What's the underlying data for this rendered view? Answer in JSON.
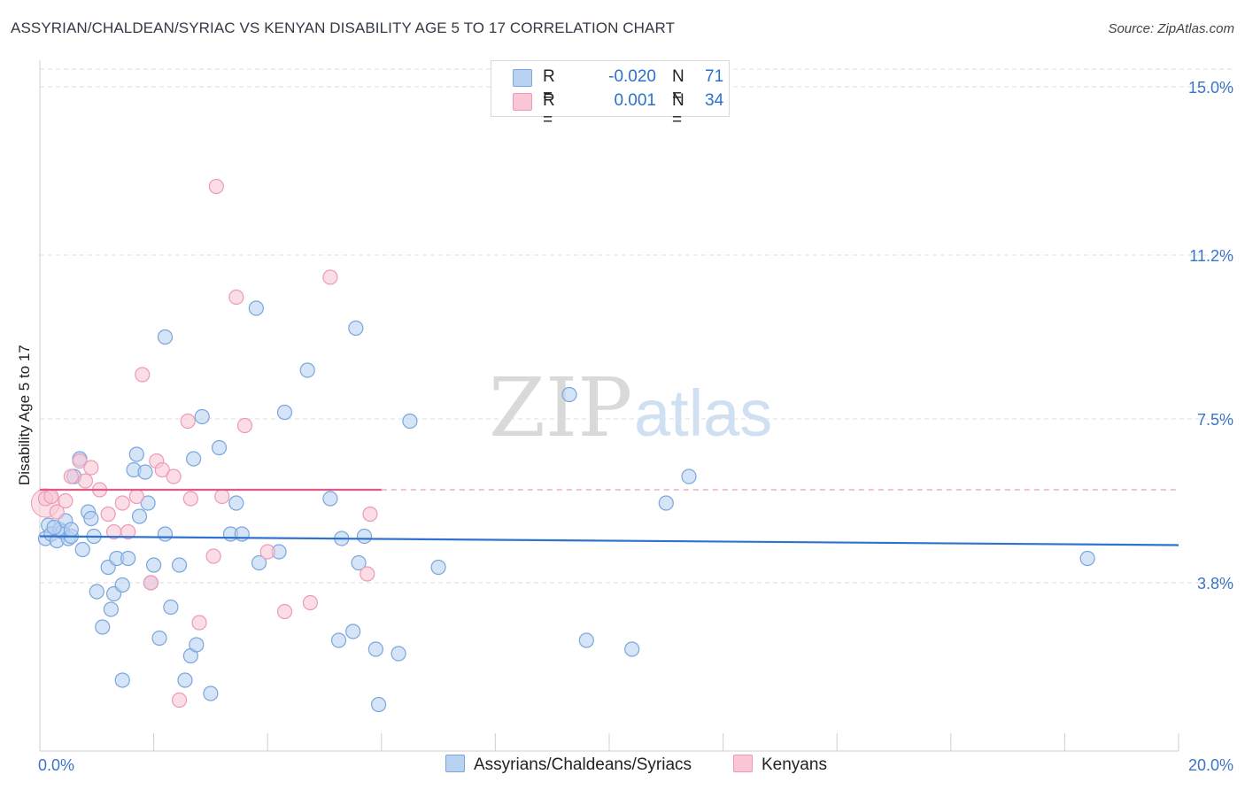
{
  "chart_data": {
    "type": "scatter",
    "title": "ASSYRIAN/CHALDEAN/SYRIAC VS KENYAN DISABILITY AGE 5 TO 17 CORRELATION CHART",
    "source": "Source: ZipAtlas.com",
    "xlabel": "",
    "ylabel": "Disability Age 5 to 17",
    "xlim": [
      0,
      20
    ],
    "ylim": [
      0,
      15.5
    ],
    "x_tick_labels": [
      "0.0%",
      "20.0%"
    ],
    "y_ticks": [
      3.8,
      7.5,
      11.2,
      15.0
    ],
    "y_tick_labels": [
      "3.8%",
      "7.5%",
      "11.2%",
      "15.0%"
    ],
    "grid": true,
    "watermark": "ZIPatlas",
    "colors": {
      "blue_fill": "#b9d2f2",
      "blue_stroke": "#7aa6dc",
      "blue_line": "#2f72d0",
      "pink_fill": "#f8c6d5",
      "pink_stroke": "#ee9ab5",
      "pink_line": "#e05a86",
      "axis_text": "#3a74c9",
      "grid": "#dddddd"
    },
    "legend": {
      "rows": [
        {
          "r_label": "R =",
          "r_value": "-0.020",
          "n_label": "N =",
          "n_value": "71"
        },
        {
          "r_label": "R =",
          "r_value": "0.001",
          "n_label": "N =",
          "n_value": "34"
        }
      ]
    },
    "series": [
      {
        "name": "Assyrians/Chaldeans/Syriacs",
        "color": "blue",
        "trend": {
          "x": [
            0,
            20
          ],
          "y": [
            4.85,
            4.65
          ]
        },
        "points": [
          [
            0.1,
            4.8
          ],
          [
            0.15,
            5.1
          ],
          [
            0.2,
            4.9
          ],
          [
            0.3,
            4.75
          ],
          [
            0.35,
            5.0
          ],
          [
            0.4,
            4.95
          ],
          [
            0.45,
            5.2
          ],
          [
            0.5,
            4.8
          ],
          [
            0.55,
            4.85
          ],
          [
            0.6,
            6.2
          ],
          [
            0.7,
            6.6
          ],
          [
            0.75,
            4.55
          ],
          [
            0.85,
            5.4
          ],
          [
            0.9,
            5.25
          ],
          [
            0.95,
            4.85
          ],
          [
            1.0,
            3.6
          ],
          [
            1.1,
            2.8
          ],
          [
            1.2,
            4.15
          ],
          [
            1.25,
            3.2
          ],
          [
            1.3,
            3.55
          ],
          [
            1.35,
            4.35
          ],
          [
            1.45,
            3.75
          ],
          [
            1.45,
            1.6
          ],
          [
            1.55,
            4.35
          ],
          [
            1.65,
            6.35
          ],
          [
            1.7,
            6.7
          ],
          [
            1.75,
            5.3
          ],
          [
            1.85,
            6.3
          ],
          [
            1.9,
            5.6
          ],
          [
            1.95,
            3.8
          ],
          [
            2.0,
            4.2
          ],
          [
            2.1,
            2.55
          ],
          [
            2.2,
            4.9
          ],
          [
            2.2,
            9.35
          ],
          [
            2.3,
            3.25
          ],
          [
            2.45,
            4.2
          ],
          [
            2.55,
            1.6
          ],
          [
            2.65,
            2.15
          ],
          [
            2.7,
            6.6
          ],
          [
            2.75,
            2.4
          ],
          [
            2.85,
            7.55
          ],
          [
            3.0,
            1.3
          ],
          [
            3.15,
            6.85
          ],
          [
            3.35,
            4.9
          ],
          [
            3.45,
            5.6
          ],
          [
            3.55,
            4.9
          ],
          [
            3.8,
            10.0
          ],
          [
            3.85,
            4.25
          ],
          [
            4.2,
            4.5
          ],
          [
            4.3,
            7.65
          ],
          [
            4.7,
            8.6
          ],
          [
            5.1,
            5.7
          ],
          [
            5.25,
            2.5
          ],
          [
            5.3,
            4.8
          ],
          [
            5.5,
            2.7
          ],
          [
            5.55,
            9.55
          ],
          [
            5.6,
            4.25
          ],
          [
            5.7,
            4.85
          ],
          [
            5.9,
            2.3
          ],
          [
            5.95,
            1.05
          ],
          [
            6.3,
            2.2
          ],
          [
            6.5,
            7.45
          ],
          [
            7.0,
            4.15
          ],
          [
            9.3,
            8.05
          ],
          [
            9.6,
            2.5
          ],
          [
            10.4,
            2.3
          ],
          [
            11.0,
            5.6
          ],
          [
            11.4,
            6.2
          ],
          [
            18.4,
            4.35
          ],
          [
            0.25,
            5.05
          ],
          [
            0.55,
            5.0
          ]
        ]
      },
      {
        "name": "Kenyans",
        "color": "pink",
        "trend": {
          "x": [
            0,
            6
          ],
          "y": [
            5.9,
            5.9
          ]
        },
        "trend_dashed": {
          "x": [
            6,
            20
          ],
          "y": [
            5.9,
            5.9
          ]
        },
        "points": [
          [
            0.1,
            5.7
          ],
          [
            0.2,
            5.75
          ],
          [
            0.3,
            5.4
          ],
          [
            0.45,
            5.65
          ],
          [
            0.55,
            6.2
          ],
          [
            0.7,
            6.55
          ],
          [
            0.8,
            6.1
          ],
          [
            0.9,
            6.4
          ],
          [
            1.05,
            5.9
          ],
          [
            1.2,
            5.35
          ],
          [
            1.3,
            4.95
          ],
          [
            1.45,
            5.6
          ],
          [
            1.55,
            4.95
          ],
          [
            1.7,
            5.75
          ],
          [
            1.8,
            8.5
          ],
          [
            1.95,
            3.8
          ],
          [
            2.05,
            6.55
          ],
          [
            2.15,
            6.35
          ],
          [
            2.35,
            6.2
          ],
          [
            2.45,
            1.15
          ],
          [
            2.6,
            7.45
          ],
          [
            2.65,
            5.7
          ],
          [
            2.8,
            2.9
          ],
          [
            3.05,
            4.4
          ],
          [
            3.1,
            12.75
          ],
          [
            3.2,
            5.75
          ],
          [
            3.45,
            10.25
          ],
          [
            3.6,
            7.35
          ],
          [
            4.0,
            4.5
          ],
          [
            4.3,
            3.15
          ],
          [
            4.75,
            3.35
          ],
          [
            5.1,
            10.7
          ],
          [
            5.8,
            5.35
          ],
          [
            5.75,
            4.0
          ]
        ]
      }
    ]
  }
}
